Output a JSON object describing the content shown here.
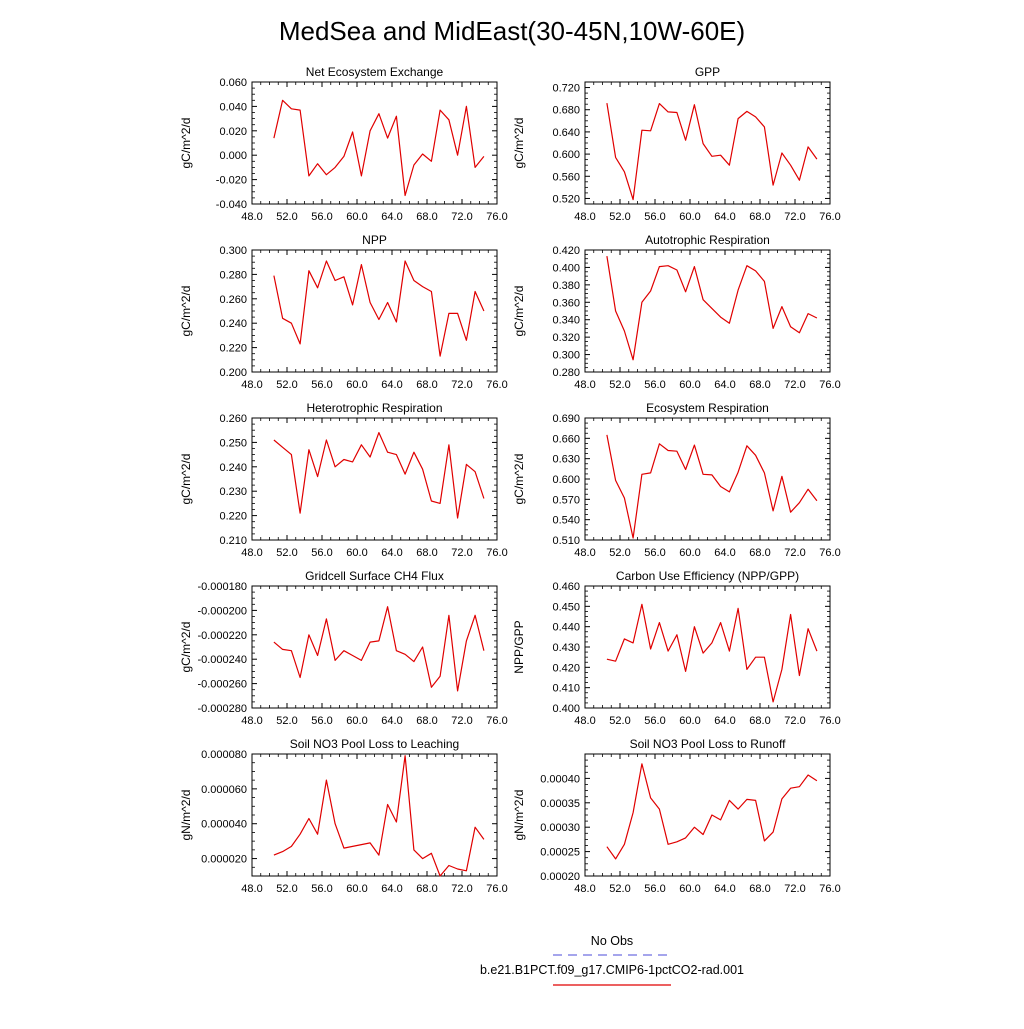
{
  "page_title": "MedSea and MidEast(30-45N,10W-60E)",
  "legend": {
    "obs_label": "No Obs",
    "model_label": "b.e21.B1PCT.f09_g17.CMIP6-1pctCO2-rad.001",
    "obs_color": "#6f6fe0",
    "model_color": "#e00000"
  },
  "chart_data": [
    {
      "type": "line",
      "title": "Net Ecosystem Exchange",
      "ylabel": "gC/m^2/d",
      "xlim": [
        48,
        76
      ],
      "ylim": [
        -0.04,
        0.06
      ],
      "xticks": [
        "48.0",
        "52.0",
        "56.0",
        "60.0",
        "64.0",
        "68.0",
        "72.0",
        "76.0"
      ],
      "yticks": [
        {
          "value": -0.04,
          "label": "-0.040"
        },
        {
          "value": -0.02,
          "label": "-0.020"
        },
        {
          "value": 0.0,
          "label": "0.000"
        },
        {
          "value": 0.02,
          "label": "0.020"
        },
        {
          "value": 0.04,
          "label": "0.040"
        },
        {
          "value": 0.06,
          "label": "0.060"
        }
      ],
      "series": [
        {
          "color": "#e00000",
          "x": [
            50.5,
            51.5,
            52.5,
            53.5,
            54.5,
            55.5,
            56.5,
            57.5,
            58.5,
            59.5,
            60.5,
            61.5,
            62.5,
            63.5,
            64.5,
            65.5,
            66.5,
            67.5,
            68.5,
            69.5,
            70.5,
            71.5,
            72.5,
            73.5,
            74.5
          ],
          "y": [
            0.014,
            0.045,
            0.038,
            0.037,
            -0.017,
            -0.007,
            -0.016,
            -0.01,
            -0.001,
            0.019,
            -0.017,
            0.02,
            0.034,
            0.014,
            0.032,
            -0.033,
            -0.008,
            0.001,
            -0.005,
            0.037,
            0.029,
            0.0,
            0.04,
            -0.01,
            -0.001
          ]
        }
      ]
    },
    {
      "type": "line",
      "title": "GPP",
      "ylabel": "gC/m^2/d",
      "xlim": [
        48,
        76
      ],
      "ylim": [
        0.51,
        0.73
      ],
      "xticks": [
        "48.0",
        "52.0",
        "56.0",
        "60.0",
        "64.0",
        "68.0",
        "72.0",
        "76.0"
      ],
      "yticks": [
        {
          "value": 0.52,
          "label": "0.520"
        },
        {
          "value": 0.56,
          "label": "0.560"
        },
        {
          "value": 0.6,
          "label": "0.600"
        },
        {
          "value": 0.64,
          "label": "0.640"
        },
        {
          "value": 0.68,
          "label": "0.680"
        },
        {
          "value": 0.72,
          "label": "0.720"
        }
      ],
      "series": [
        {
          "color": "#e00000",
          "x": [
            50.5,
            51.5,
            52.5,
            53.5,
            54.5,
            55.5,
            56.5,
            57.5,
            58.5,
            59.5,
            60.5,
            61.5,
            62.5,
            63.5,
            64.5,
            65.5,
            66.5,
            67.5,
            68.5,
            69.5,
            70.5,
            71.5,
            72.5,
            73.5,
            74.5
          ],
          "y": [
            0.692,
            0.594,
            0.568,
            0.518,
            0.643,
            0.642,
            0.691,
            0.676,
            0.675,
            0.625,
            0.689,
            0.619,
            0.596,
            0.598,
            0.58,
            0.664,
            0.677,
            0.667,
            0.649,
            0.544,
            0.602,
            0.58,
            0.553,
            0.613,
            0.591
          ]
        }
      ]
    },
    {
      "type": "line",
      "title": "NPP",
      "ylabel": "gC/m^2/d",
      "xlim": [
        48,
        76
      ],
      "ylim": [
        0.2,
        0.3
      ],
      "xticks": [
        "48.0",
        "52.0",
        "56.0",
        "60.0",
        "64.0",
        "68.0",
        "72.0",
        "76.0"
      ],
      "yticks": [
        {
          "value": 0.2,
          "label": "0.200"
        },
        {
          "value": 0.22,
          "label": "0.220"
        },
        {
          "value": 0.24,
          "label": "0.240"
        },
        {
          "value": 0.26,
          "label": "0.260"
        },
        {
          "value": 0.28,
          "label": "0.280"
        },
        {
          "value": 0.3,
          "label": "0.300"
        }
      ],
      "series": [
        {
          "color": "#e00000",
          "x": [
            50.5,
            51.5,
            52.5,
            53.5,
            54.5,
            55.5,
            56.5,
            57.5,
            58.5,
            59.5,
            60.5,
            61.5,
            62.5,
            63.5,
            64.5,
            65.5,
            66.5,
            67.5,
            68.5,
            69.5,
            70.5,
            71.5,
            72.5,
            73.5,
            74.5
          ],
          "y": [
            0.279,
            0.244,
            0.24,
            0.223,
            0.283,
            0.269,
            0.291,
            0.275,
            0.278,
            0.255,
            0.288,
            0.257,
            0.243,
            0.257,
            0.241,
            0.291,
            0.275,
            0.27,
            0.266,
            0.213,
            0.248,
            0.248,
            0.226,
            0.266,
            0.25
          ]
        }
      ]
    },
    {
      "type": "line",
      "title": "Autotrophic Respiration",
      "ylabel": "gC/m^2/d",
      "xlim": [
        48,
        76
      ],
      "ylim": [
        0.28,
        0.42
      ],
      "xticks": [
        "48.0",
        "52.0",
        "56.0",
        "60.0",
        "64.0",
        "68.0",
        "72.0",
        "76.0"
      ],
      "yticks": [
        {
          "value": 0.28,
          "label": "0.280"
        },
        {
          "value": 0.3,
          "label": "0.300"
        },
        {
          "value": 0.32,
          "label": "0.320"
        },
        {
          "value": 0.34,
          "label": "0.340"
        },
        {
          "value": 0.36,
          "label": "0.360"
        },
        {
          "value": 0.38,
          "label": "0.380"
        },
        {
          "value": 0.4,
          "label": "0.400"
        },
        {
          "value": 0.42,
          "label": "0.420"
        }
      ],
      "series": [
        {
          "color": "#e00000",
          "x": [
            50.5,
            51.5,
            52.5,
            53.5,
            54.5,
            55.5,
            56.5,
            57.5,
            58.5,
            59.5,
            60.5,
            61.5,
            62.5,
            63.5,
            64.5,
            65.5,
            66.5,
            67.5,
            68.5,
            69.5,
            70.5,
            71.5,
            72.5,
            73.5,
            74.5
          ],
          "y": [
            0.413,
            0.35,
            0.327,
            0.294,
            0.36,
            0.373,
            0.401,
            0.402,
            0.397,
            0.372,
            0.401,
            0.363,
            0.353,
            0.343,
            0.336,
            0.374,
            0.402,
            0.396,
            0.384,
            0.33,
            0.355,
            0.332,
            0.325,
            0.347,
            0.342
          ]
        }
      ]
    },
    {
      "type": "line",
      "title": "Heterotrophic Respiration",
      "ylabel": "gC/m^2/d",
      "xlim": [
        48,
        76
      ],
      "ylim": [
        0.21,
        0.26
      ],
      "xticks": [
        "48.0",
        "52.0",
        "56.0",
        "60.0",
        "64.0",
        "68.0",
        "72.0",
        "76.0"
      ],
      "yticks": [
        {
          "value": 0.21,
          "label": "0.210"
        },
        {
          "value": 0.22,
          "label": "0.220"
        },
        {
          "value": 0.23,
          "label": "0.230"
        },
        {
          "value": 0.24,
          "label": "0.240"
        },
        {
          "value": 0.25,
          "label": "0.250"
        },
        {
          "value": 0.26,
          "label": "0.260"
        }
      ],
      "series": [
        {
          "color": "#e00000",
          "x": [
            50.5,
            51.5,
            52.5,
            53.5,
            54.5,
            55.5,
            56.5,
            57.5,
            58.5,
            59.5,
            60.5,
            61.5,
            62.5,
            63.5,
            64.5,
            65.5,
            66.5,
            67.5,
            68.5,
            69.5,
            70.5,
            71.5,
            72.5,
            73.5,
            74.5
          ],
          "y": [
            0.251,
            0.248,
            0.245,
            0.221,
            0.247,
            0.236,
            0.251,
            0.24,
            0.243,
            0.242,
            0.249,
            0.244,
            0.254,
            0.246,
            0.245,
            0.237,
            0.246,
            0.239,
            0.226,
            0.225,
            0.249,
            0.219,
            0.241,
            0.238,
            0.227
          ]
        }
      ]
    },
    {
      "type": "line",
      "title": "Ecosystem Respiration",
      "ylabel": "gC/m^2/d",
      "xlim": [
        48,
        76
      ],
      "ylim": [
        0.51,
        0.69
      ],
      "xticks": [
        "48.0",
        "52.0",
        "56.0",
        "60.0",
        "64.0",
        "68.0",
        "72.0",
        "76.0"
      ],
      "yticks": [
        {
          "value": 0.51,
          "label": "0.510"
        },
        {
          "value": 0.54,
          "label": "0.540"
        },
        {
          "value": 0.57,
          "label": "0.570"
        },
        {
          "value": 0.6,
          "label": "0.600"
        },
        {
          "value": 0.63,
          "label": "0.630"
        },
        {
          "value": 0.66,
          "label": "0.660"
        },
        {
          "value": 0.69,
          "label": "0.690"
        }
      ],
      "series": [
        {
          "color": "#e00000",
          "x": [
            50.5,
            51.5,
            52.5,
            53.5,
            54.5,
            55.5,
            56.5,
            57.5,
            58.5,
            59.5,
            60.5,
            61.5,
            62.5,
            63.5,
            64.5,
            65.5,
            66.5,
            67.5,
            68.5,
            69.5,
            70.5,
            71.5,
            72.5,
            73.5,
            74.5
          ],
          "y": [
            0.665,
            0.598,
            0.572,
            0.513,
            0.607,
            0.609,
            0.652,
            0.642,
            0.641,
            0.614,
            0.65,
            0.607,
            0.606,
            0.589,
            0.581,
            0.61,
            0.649,
            0.635,
            0.609,
            0.553,
            0.604,
            0.551,
            0.565,
            0.585,
            0.568
          ]
        }
      ]
    },
    {
      "type": "line",
      "title": "Gridcell Surface CH4 Flux",
      "ylabel": "gC/m^2/d",
      "xlim": [
        48,
        76
      ],
      "ylim": [
        -0.00028,
        -0.00018
      ],
      "xticks": [
        "48.0",
        "52.0",
        "56.0",
        "60.0",
        "64.0",
        "68.0",
        "72.0",
        "76.0"
      ],
      "yticks": [
        {
          "value": -0.00028,
          "label": "-0.000280"
        },
        {
          "value": -0.00026,
          "label": "-0.000260"
        },
        {
          "value": -0.00024,
          "label": "-0.000240"
        },
        {
          "value": -0.00022,
          "label": "-0.000220"
        },
        {
          "value": -0.0002,
          "label": "-0.000200"
        },
        {
          "value": -0.00018,
          "label": "-0.000180"
        }
      ],
      "series": [
        {
          "color": "#e00000",
          "x": [
            50.5,
            51.5,
            52.5,
            53.5,
            54.5,
            55.5,
            56.5,
            57.5,
            58.5,
            59.5,
            60.5,
            61.5,
            62.5,
            63.5,
            64.5,
            65.5,
            66.5,
            67.5,
            68.5,
            69.5,
            70.5,
            71.5,
            72.5,
            73.5,
            74.5
          ],
          "y": [
            -0.000226,
            -0.000232,
            -0.000233,
            -0.000255,
            -0.00022,
            -0.000237,
            -0.000207,
            -0.000241,
            -0.000233,
            -0.000237,
            -0.000241,
            -0.000226,
            -0.000225,
            -0.000197,
            -0.000233,
            -0.000236,
            -0.000242,
            -0.00023,
            -0.000263,
            -0.000254,
            -0.000204,
            -0.000266,
            -0.000225,
            -0.000204,
            -0.000233
          ]
        }
      ]
    },
    {
      "type": "line",
      "title": "Carbon Use Efficiency (NPP/GPP)",
      "ylabel": "NPP/GPP",
      "xlim": [
        48,
        76
      ],
      "ylim": [
        0.4,
        0.46
      ],
      "xticks": [
        "48.0",
        "52.0",
        "56.0",
        "60.0",
        "64.0",
        "68.0",
        "72.0",
        "76.0"
      ],
      "yticks": [
        {
          "value": 0.4,
          "label": "0.400"
        },
        {
          "value": 0.41,
          "label": "0.410"
        },
        {
          "value": 0.42,
          "label": "0.420"
        },
        {
          "value": 0.43,
          "label": "0.430"
        },
        {
          "value": 0.44,
          "label": "0.440"
        },
        {
          "value": 0.45,
          "label": "0.450"
        },
        {
          "value": 0.46,
          "label": "0.460"
        }
      ],
      "series": [
        {
          "color": "#e00000",
          "x": [
            50.5,
            51.5,
            52.5,
            53.5,
            54.5,
            55.5,
            56.5,
            57.5,
            58.5,
            59.5,
            60.5,
            61.5,
            62.5,
            63.5,
            64.5,
            65.5,
            66.5,
            67.5,
            68.5,
            69.5,
            70.5,
            71.5,
            72.5,
            73.5,
            74.5
          ],
          "y": [
            0.424,
            0.423,
            0.434,
            0.432,
            0.451,
            0.429,
            0.442,
            0.428,
            0.436,
            0.418,
            0.44,
            0.427,
            0.432,
            0.442,
            0.428,
            0.449,
            0.419,
            0.425,
            0.425,
            0.403,
            0.419,
            0.446,
            0.416,
            0.439,
            0.428
          ]
        }
      ]
    },
    {
      "type": "line",
      "title": "Soil NO3 Pool Loss to Leaching",
      "ylabel": "gN/m^2/d",
      "xlim": [
        48,
        76
      ],
      "ylim": [
        1e-05,
        8e-05
      ],
      "xticks": [
        "48.0",
        "52.0",
        "56.0",
        "60.0",
        "64.0",
        "68.0",
        "72.0",
        "76.0"
      ],
      "yticks": [
        {
          "value": 2e-05,
          "label": "0.000020"
        },
        {
          "value": 4e-05,
          "label": "0.000040"
        },
        {
          "value": 6e-05,
          "label": "0.000060"
        },
        {
          "value": 8e-05,
          "label": "0.000080"
        }
      ],
      "series": [
        {
          "color": "#e00000",
          "x": [
            50.5,
            51.5,
            52.5,
            53.5,
            54.5,
            55.5,
            56.5,
            57.5,
            58.5,
            59.5,
            60.5,
            61.5,
            62.5,
            63.5,
            64.5,
            65.5,
            66.5,
            67.5,
            68.5,
            69.5,
            70.5,
            71.5,
            72.5,
            73.5,
            74.5
          ],
          "y": [
            2.2e-05,
            2.4e-05,
            2.7e-05,
            3.4e-05,
            4.3e-05,
            3.4e-05,
            6.5e-05,
            4e-05,
            2.6e-05,
            2.7e-05,
            2.8e-05,
            2.9e-05,
            2.2e-05,
            5.1e-05,
            4.1e-05,
            7.9e-05,
            2.5e-05,
            2e-05,
            2.3e-05,
            1e-05,
            1.6e-05,
            1.4e-05,
            1.3e-05,
            3.8e-05,
            3.1e-05
          ]
        }
      ]
    },
    {
      "type": "line",
      "title": "Soil NO3 Pool Loss to Runoff",
      "ylabel": "gN/m^2/d",
      "xlim": [
        48,
        76
      ],
      "ylim": [
        0.0002,
        0.00045
      ],
      "xticks": [
        "48.0",
        "52.0",
        "56.0",
        "60.0",
        "64.0",
        "68.0",
        "72.0",
        "76.0"
      ],
      "yticks": [
        {
          "value": 0.0002,
          "label": "0.00020"
        },
        {
          "value": 0.00025,
          "label": "0.00025"
        },
        {
          "value": 0.0003,
          "label": "0.00030"
        },
        {
          "value": 0.00035,
          "label": "0.00035"
        },
        {
          "value": 0.0004,
          "label": "0.00040"
        }
      ],
      "series": [
        {
          "color": "#e00000",
          "x": [
            50.5,
            51.5,
            52.5,
            53.5,
            54.5,
            55.5,
            56.5,
            57.5,
            58.5,
            59.5,
            60.5,
            61.5,
            62.5,
            63.5,
            64.5,
            65.5,
            66.5,
            67.5,
            68.5,
            69.5,
            70.5,
            71.5,
            72.5,
            73.5,
            74.5
          ],
          "y": [
            0.00026,
            0.000235,
            0.000265,
            0.00033,
            0.00043,
            0.00036,
            0.000337,
            0.000265,
            0.00027,
            0.000278,
            0.0003,
            0.000285,
            0.000325,
            0.000315,
            0.000355,
            0.000337,
            0.000357,
            0.000355,
            0.000272,
            0.00029,
            0.000358,
            0.00038,
            0.000383,
            0.000407,
            0.000395
          ]
        }
      ]
    }
  ]
}
